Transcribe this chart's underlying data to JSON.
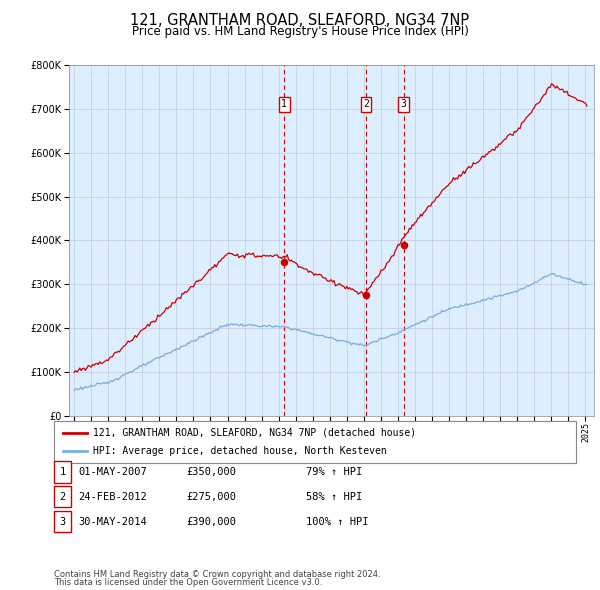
{
  "title": "121, GRANTHAM ROAD, SLEAFORD, NG34 7NP",
  "subtitle": "Price paid vs. HM Land Registry's House Price Index (HPI)",
  "legend_line1": "121, GRANTHAM ROAD, SLEAFORD, NG34 7NP (detached house)",
  "legend_line2": "HPI: Average price, detached house, North Kesteven",
  "footnote1": "Contains HM Land Registry data © Crown copyright and database right 2024.",
  "footnote2": "This data is licensed under the Open Government Licence v3.0.",
  "sale_markers": [
    {
      "label": "1",
      "date": "01-MAY-2007",
      "price": "£350,000",
      "pct": "79% ↑ HPI",
      "x_year": 2007.33,
      "y_val": 350000
    },
    {
      "label": "2",
      "date": "24-FEB-2012",
      "price": "£275,000",
      "pct": "58% ↑ HPI",
      "x_year": 2012.12,
      "y_val": 275000
    },
    {
      "label": "3",
      "date": "30-MAY-2014",
      "price": "£390,000",
      "pct": "100% ↑ HPI",
      "x_year": 2014.33,
      "y_val": 390000
    }
  ],
  "hpi_color": "#7aacde",
  "price_color": "#cc0000",
  "plot_bg_color": "#ddeeff",
  "grid_color": "#b0b8cc",
  "ylim": [
    0,
    800000
  ],
  "xlim_start": 1994.7,
  "xlim_end": 2025.5,
  "yticks": [
    0,
    100000,
    200000,
    300000,
    400000,
    500000,
    600000,
    700000,
    800000
  ],
  "xticks": [
    1995,
    1996,
    1997,
    1998,
    1999,
    2000,
    2001,
    2002,
    2003,
    2004,
    2005,
    2006,
    2007,
    2008,
    2009,
    2010,
    2011,
    2012,
    2013,
    2014,
    2015,
    2016,
    2017,
    2018,
    2019,
    2020,
    2021,
    2022,
    2023,
    2024,
    2025
  ]
}
